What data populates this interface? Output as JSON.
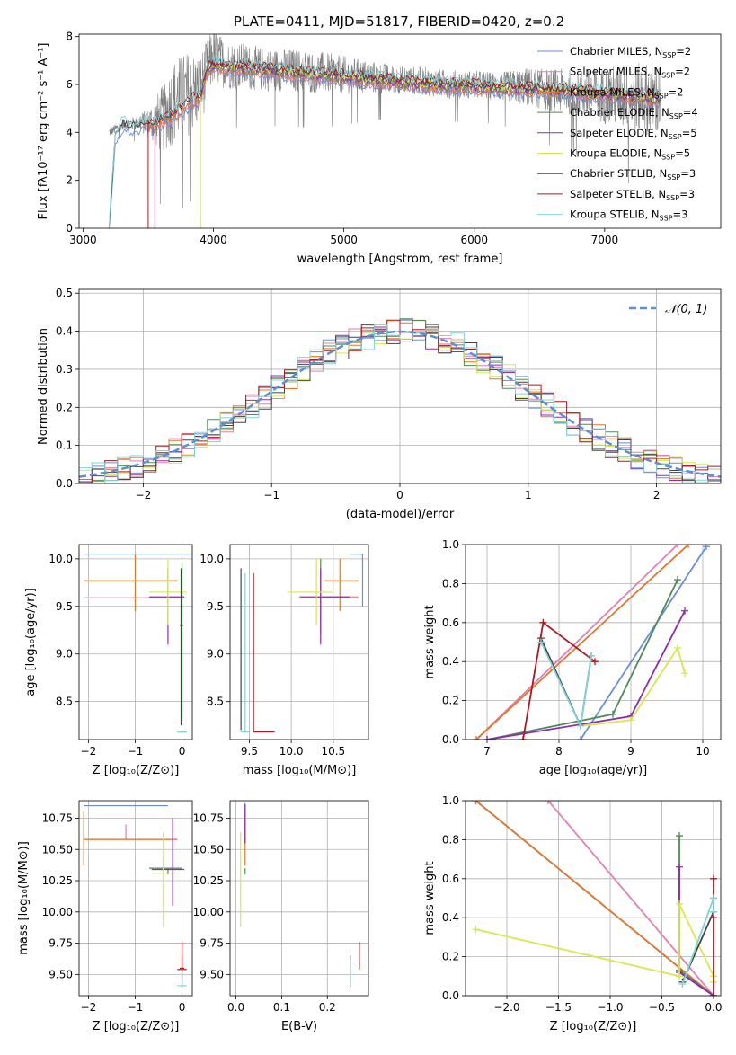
{
  "figure": {
    "title": "PLATE=0411, MJD=51817, FIBERID=0420, z=0.2"
  },
  "models": [
    {
      "name": "Chabrier MILES, N",
      "sub": "SSP",
      "tail": "=2",
      "color": "#6a8ddb"
    },
    {
      "name": "Salpeter MILES, N",
      "sub": "SSP",
      "tail": "=2",
      "color": "#e57fb2"
    },
    {
      "name": "Kroupa MILES, N",
      "sub": "SSP",
      "tail": "=2",
      "color": "#e0772b"
    },
    {
      "name": "Chabrier ELODIE, N",
      "sub": "SSP",
      "tail": "=4",
      "color": "#4e8b57"
    },
    {
      "name": "Salpeter ELODIE, N",
      "sub": "SSP",
      "tail": "=5",
      "color": "#8e2bb0"
    },
    {
      "name": "Kroupa ELODIE, N",
      "sub": "SSP",
      "tail": "=5",
      "color": "#d6e84a"
    },
    {
      "name": "Chabrier STELIB, N",
      "sub": "SSP",
      "tail": "=3",
      "color": "#444444"
    },
    {
      "name": "Salpeter STELIB, N",
      "sub": "SSP",
      "tail": "=3",
      "color": "#b0171f"
    },
    {
      "name": "Kroupa STELIB, N",
      "sub": "SSP",
      "tail": "=3",
      "color": "#7fd4d8"
    }
  ],
  "chart_data": [
    {
      "id": "spectrum",
      "type": "line",
      "xlabel": "wavelength [Angstrom, rest frame]",
      "ylabel": "Flux [fλ10⁻¹⁷ erg cm⁻² s⁻¹ A⁻¹]",
      "xlim": [
        2970,
        7890
      ],
      "ylim": [
        0,
        8.1
      ],
      "xticks": [
        3000,
        4000,
        5000,
        6000,
        7000
      ],
      "yticks": [
        0,
        2,
        4,
        6,
        8
      ],
      "data_color": "#808080",
      "data_envelope": {
        "x": [
          3200,
          3300,
          3400,
          3500,
          3600,
          3700,
          3800,
          3900,
          4000,
          4100,
          4200,
          4400,
          4600,
          4800,
          5000,
          5200,
          5400,
          5600,
          5800,
          6000,
          6200,
          6400,
          6600,
          6800,
          7000,
          7200,
          7400
        ],
        "y": [
          4.0,
          4.3,
          4.4,
          4.4,
          4.5,
          5.3,
          5.6,
          5.8,
          7.2,
          6.8,
          6.8,
          6.6,
          6.6,
          6.5,
          6.4,
          6.3,
          6.2,
          6.15,
          6.0,
          6.0,
          5.9,
          5.9,
          5.75,
          5.65,
          5.55,
          5.45,
          5.4
        ],
        "noise": [
          0.2,
          0.2,
          0.3,
          0.6,
          1.4,
          1.8,
          1.8,
          1.5,
          1.2,
          1.0,
          1.0,
          0.9,
          0.9,
          0.9,
          0.8,
          0.7,
          0.6,
          0.6,
          0.6,
          0.6,
          0.6,
          0.8,
          0.9,
          1.0,
          1.2,
          1.4,
          1.6
        ]
      },
      "model_curve": {
        "x": [
          3200,
          3250,
          3300,
          3400,
          3500,
          3550,
          3600,
          3700,
          3800,
          3900,
          3950,
          4000,
          4100,
          4200,
          4400,
          4600,
          4800,
          5000,
          5200,
          5400,
          5600,
          5800,
          6000,
          6200,
          6400,
          6600,
          6800,
          7000,
          7200,
          7400
        ],
        "y": [
          0,
          3.8,
          4.3,
          4.2,
          4.4,
          4.2,
          4.5,
          4.7,
          5.2,
          5.5,
          6.6,
          6.8,
          6.7,
          6.7,
          6.6,
          6.5,
          6.4,
          6.3,
          6.2,
          6.1,
          6.0,
          5.95,
          5.9,
          5.85,
          5.8,
          5.75,
          5.7,
          5.6,
          5.5,
          5.4
        ]
      },
      "model_starts": [
        3200,
        3550,
        3500,
        3900,
        3900,
        3900,
        3200,
        3500,
        3200
      ]
    },
    {
      "id": "residuals",
      "type": "histogram",
      "xlabel": "(data-model)/error",
      "ylabel": "Normed distribution",
      "xlim": [
        -2.5,
        2.5
      ],
      "ylim": [
        0,
        0.51
      ],
      "xticks": [
        -2,
        -1,
        0,
        1,
        2
      ],
      "yticks": [
        0.0,
        0.1,
        0.2,
        0.3,
        0.4,
        0.5
      ],
      "legend_label": "𝒩(0, 1)",
      "legend_position": "top-right",
      "gaussian_color": "#5b8fd6"
    },
    {
      "id": "age-vs-z",
      "type": "errorbar",
      "xlabel": "Z [log₁₀(Z/Z⊙)]",
      "ylabel": "age  [log₁₀(age/yr)]",
      "xlim": [
        -2.2,
        0.22
      ],
      "ylim": [
        8.1,
        10.15
      ],
      "xticks": [
        -2,
        -1,
        0
      ],
      "yticks": [
        8.5,
        9.0,
        9.5,
        10.0
      ],
      "points": [
        {
          "model": 0,
          "x": -0.9,
          "xlo": -2.1,
          "xhi": 0.3,
          "y": 10.05,
          "ylo": 10.05,
          "yhi": 10.05
        },
        {
          "model": 1,
          "x": -0.9,
          "xlo": -2.1,
          "xhi": 0.0,
          "y": 9.59,
          "ylo": 9.59,
          "yhi": 9.59
        },
        {
          "model": 2,
          "x": -1.0,
          "xlo": -2.1,
          "xhi": -0.1,
          "y": 9.77,
          "ylo": 9.45,
          "yhi": 10.05
        },
        {
          "model": 3,
          "x": 0.0,
          "xlo": 0.0,
          "xhi": 0.0,
          "y": 9.5,
          "ylo": 8.3,
          "yhi": 9.95
        },
        {
          "model": 4,
          "x": -0.3,
          "xlo": -0.7,
          "xhi": 0.05,
          "y": 9.6,
          "ylo": 9.1,
          "yhi": 9.9
        },
        {
          "model": 5,
          "x": -0.3,
          "xlo": -0.7,
          "xhi": 0.1,
          "y": 9.65,
          "ylo": 9.3,
          "yhi": 10.0
        },
        {
          "model": 6,
          "x": -0.02,
          "xlo": -0.05,
          "xhi": 0.02,
          "y": 9.3,
          "ylo": 8.25,
          "yhi": 9.9
        },
        {
          "model": 7,
          "x": 0.0,
          "xlo": -0.1,
          "xhi": 0.1,
          "y": 8.18,
          "ylo": 8.18,
          "yhi": 8.18
        },
        {
          "model": 8,
          "x": 0.0,
          "xlo": -0.1,
          "xhi": 0.1,
          "y": 8.18,
          "ylo": 8.18,
          "yhi": 8.18
        }
      ]
    },
    {
      "id": "age-vs-mass",
      "type": "errorbar",
      "xlabel": "mass [log₁₀(M/M⊙)]",
      "ylabel": "",
      "xlim": [
        9.27,
        10.92
      ],
      "ylim": [
        8.1,
        10.15
      ],
      "xticks": [
        9.5,
        10.0,
        10.5
      ],
      "yticks": [
        8.5,
        9.0,
        9.5,
        10.0
      ],
      "points": [
        {
          "model": 0,
          "x": 10.85,
          "xlo": 10.7,
          "xhi": 10.85,
          "y": 10.05,
          "ylo": 9.5,
          "yhi": 10.05
        },
        {
          "model": 1,
          "x": 10.58,
          "xlo": 10.4,
          "xhi": 10.8,
          "y": 9.6,
          "ylo": 9.6,
          "yhi": 9.6
        },
        {
          "model": 2,
          "x": 10.58,
          "xlo": 10.4,
          "xhi": 10.8,
          "y": 9.77,
          "ylo": 9.45,
          "yhi": 10.0
        },
        {
          "model": 3,
          "x": 10.35,
          "xlo": 10.35,
          "xhi": 10.35,
          "y": 9.7,
          "ylo": 9.2,
          "yhi": 10.0
        },
        {
          "model": 4,
          "x": 10.35,
          "xlo": 10.1,
          "xhi": 10.7,
          "y": 9.6,
          "ylo": 9.1,
          "yhi": 9.9
        },
        {
          "model": 5,
          "x": 10.3,
          "xlo": 9.95,
          "xhi": 10.5,
          "y": 9.65,
          "ylo": 9.3,
          "yhi": 10.0
        },
        {
          "model": 6,
          "x": 9.4,
          "xlo": 9.4,
          "xhi": 9.4,
          "y": 9.5,
          "ylo": 8.2,
          "yhi": 9.9
        },
        {
          "model": 7,
          "x": 9.55,
          "xlo": 9.55,
          "xhi": 9.8,
          "y": 8.18,
          "ylo": 8.18,
          "yhi": 9.85
        },
        {
          "model": 8,
          "x": 9.45,
          "xlo": 9.4,
          "xhi": 9.5,
          "y": 8.18,
          "ylo": 8.18,
          "yhi": 9.85
        }
      ]
    },
    {
      "id": "weight-vs-age",
      "type": "line",
      "xlabel": "age  [log₁₀(age/yr)]",
      "ylabel": "mass weight",
      "xlim": [
        6.7,
        10.25
      ],
      "ylim": [
        0,
        1.0
      ],
      "xticks": [
        7,
        8,
        9,
        10
      ],
      "yticks": [
        0.0,
        0.2,
        0.4,
        0.6,
        0.8,
        1.0
      ],
      "series": [
        {
          "model": 0,
          "x": [
            8.3,
            10.05
          ],
          "y": [
            0.0,
            0.99
          ]
        },
        {
          "model": 1,
          "x": [
            6.85,
            9.65
          ],
          "y": [
            0.0,
            1.0
          ]
        },
        {
          "model": 2,
          "x": [
            6.85,
            9.8
          ],
          "y": [
            0.0,
            1.0
          ]
        },
        {
          "model": 3,
          "x": [
            7.0,
            8.75,
            9.65
          ],
          "y": [
            0.0,
            0.13,
            0.82
          ]
        },
        {
          "model": 4,
          "x": [
            7.0,
            9.0,
            9.75
          ],
          "y": [
            0.0,
            0.12,
            0.66
          ]
        },
        {
          "model": 5,
          "x": [
            8.3,
            9.0,
            9.65,
            9.75
          ],
          "y": [
            0.07,
            0.1,
            0.47,
            0.34
          ]
        },
        {
          "model": 6,
          "x": [
            7.75,
            8.3,
            8.45
          ],
          "y": [
            0.52,
            0.07,
            0.43
          ]
        },
        {
          "model": 7,
          "x": [
            7.5,
            7.78,
            8.5
          ],
          "y": [
            0.0,
            0.6,
            0.4
          ]
        },
        {
          "model": 8,
          "x": [
            7.75,
            8.3,
            8.45
          ],
          "y": [
            0.5,
            0.07,
            0.43
          ]
        }
      ]
    },
    {
      "id": "mass-vs-z",
      "type": "errorbar",
      "xlabel": "Z [log₁₀(Z/Z⊙)]",
      "ylabel": "mass [log₁₀(M/M⊙)]",
      "xlim": [
        -2.2,
        0.22
      ],
      "ylim": [
        9.33,
        10.89
      ],
      "xticks": [
        -2,
        -1,
        0
      ],
      "yticks": [
        9.5,
        9.75,
        10.0,
        10.25,
        10.5,
        10.75
      ],
      "points": [
        {
          "model": 0,
          "x": -0.9,
          "xlo": -2.1,
          "xhi": -0.3,
          "y": 10.85,
          "ylo": 10.85,
          "yhi": 10.85
        },
        {
          "model": 1,
          "x": -1.2,
          "xlo": -2.1,
          "xhi": -0.1,
          "y": 10.58,
          "ylo": 10.58,
          "yhi": 10.7
        },
        {
          "model": 2,
          "x": -2.1,
          "xlo": -2.1,
          "xhi": -0.1,
          "y": 10.58,
          "ylo": 10.37,
          "yhi": 10.8
        },
        {
          "model": 3,
          "x": -0.3,
          "xlo": -0.7,
          "xhi": 0.0,
          "y": 10.35,
          "ylo": 10.3,
          "yhi": 10.35
        },
        {
          "model": 4,
          "x": -0.2,
          "xlo": -0.65,
          "xhi": 0.05,
          "y": 10.34,
          "ylo": 10.05,
          "yhi": 10.75
        },
        {
          "model": 5,
          "x": -0.4,
          "xlo": -0.65,
          "xhi": -0.1,
          "y": 10.31,
          "ylo": 9.88,
          "yhi": 10.64
        },
        {
          "model": 6,
          "x": 0.0,
          "xlo": -0.05,
          "xhi": 0.05,
          "y": 9.55,
          "ylo": 9.4,
          "yhi": 9.65
        },
        {
          "model": 7,
          "x": 0.0,
          "xlo": -0.1,
          "xhi": 0.1,
          "y": 9.54,
          "ylo": 9.54,
          "yhi": 9.76
        },
        {
          "model": 8,
          "x": 0.0,
          "xlo": -0.1,
          "xhi": 0.1,
          "y": 9.41,
          "ylo": 9.41,
          "yhi": 9.41
        }
      ]
    },
    {
      "id": "mass-vs-ebv",
      "type": "errorbar",
      "xlabel": "E(B-V)",
      "ylabel": "",
      "xlim": [
        -0.013,
        0.29
      ],
      "ylim": [
        9.33,
        10.89
      ],
      "xticks": [
        0.0,
        0.1,
        0.2
      ],
      "yticks": [
        9.5,
        9.75,
        10.0,
        10.25,
        10.5,
        10.75
      ],
      "points": [
        {
          "model": 0,
          "x": 0.02,
          "xlo": 0.02,
          "xhi": 0.02,
          "y": 10.8,
          "ylo": 10.55,
          "yhi": 10.87
        },
        {
          "model": 1,
          "x": 0.02,
          "xlo": 0.02,
          "xhi": 0.02,
          "y": 10.58,
          "ylo": 10.55,
          "yhi": 10.75
        },
        {
          "model": 2,
          "x": 0.02,
          "xlo": 0.02,
          "xhi": 0.02,
          "y": 10.58,
          "ylo": 10.37,
          "yhi": 10.8
        },
        {
          "model": 3,
          "x": 0.02,
          "xlo": 0.02,
          "xhi": 0.02,
          "y": 10.35,
          "ylo": 10.3,
          "yhi": 10.35
        },
        {
          "model": 4,
          "x": 0.02,
          "xlo": 0.02,
          "xhi": 0.02,
          "y": 10.7,
          "ylo": 10.55,
          "yhi": 10.86
        },
        {
          "model": 5,
          "x": 0.01,
          "xlo": 0.01,
          "xhi": 0.01,
          "y": 10.2,
          "ylo": 9.88,
          "yhi": 10.64
        },
        {
          "model": 6,
          "x": 0.25,
          "xlo": 0.25,
          "xhi": 0.25,
          "y": 9.55,
          "ylo": 9.4,
          "yhi": 9.65
        },
        {
          "model": 7,
          "x": 0.27,
          "xlo": 0.27,
          "xhi": 0.27,
          "y": 9.6,
          "ylo": 9.54,
          "yhi": 9.76
        },
        {
          "model": 8,
          "x": 0.25,
          "xlo": 0.25,
          "xhi": 0.25,
          "y": 9.5,
          "ylo": 9.41,
          "yhi": 9.62
        }
      ]
    },
    {
      "id": "weight-vs-z",
      "type": "line",
      "xlabel": "Z [log₁₀(Z/Z⊙)]",
      "ylabel": "mass weight",
      "xlim": [
        -2.4,
        0.07
      ],
      "ylim": [
        0,
        1.0
      ],
      "xticks": [
        -2.0,
        -1.5,
        -1.0,
        -0.5,
        0.0
      ],
      "yticks": [
        0.0,
        0.2,
        0.4,
        0.6,
        0.8,
        1.0
      ],
      "series": [
        {
          "model": 0,
          "x": [
            -2.3,
            0.0
          ],
          "y": [
            1.0,
            0.0
          ]
        },
        {
          "model": 1,
          "x": [
            -1.6,
            0.0
          ],
          "y": [
            1.0,
            0.0
          ]
        },
        {
          "model": 2,
          "x": [
            -2.3,
            0.0
          ],
          "y": [
            1.0,
            0.0
          ]
        },
        {
          "model": 3,
          "x": [
            -0.33,
            -0.33,
            0.0
          ],
          "y": [
            0.82,
            0.13,
            0.0
          ]
        },
        {
          "model": 4,
          "x": [
            -0.33,
            -0.33,
            0.0
          ],
          "y": [
            0.66,
            0.12,
            0.0
          ]
        },
        {
          "model": 5,
          "x": [
            -2.3,
            -0.33,
            -0.33,
            0.0,
            0.0
          ],
          "y": [
            0.34,
            0.1,
            0.47,
            0.1,
            0.07
          ]
        },
        {
          "model": 6,
          "x": [
            -0.3,
            0.0,
            0.0
          ],
          "y": [
            0.07,
            0.43,
            0.5
          ]
        },
        {
          "model": 7,
          "x": [
            0.0,
            0.0,
            0.0
          ],
          "y": [
            0.6,
            0.4,
            0.0
          ]
        },
        {
          "model": 8,
          "x": [
            -0.3,
            0.0,
            0.0
          ],
          "y": [
            0.06,
            0.5,
            0.43
          ]
        }
      ]
    }
  ]
}
